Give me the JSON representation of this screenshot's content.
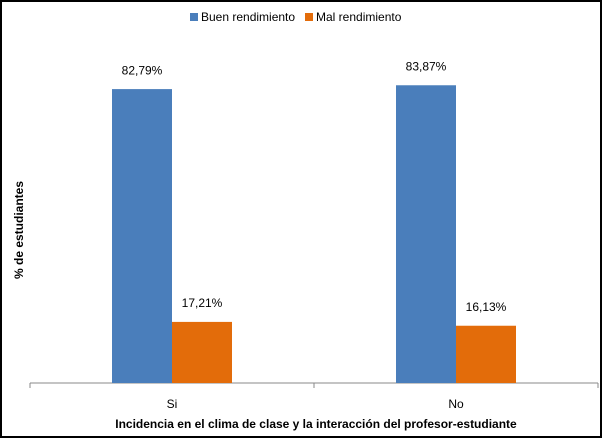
{
  "chart_data": {
    "type": "bar",
    "x_label": "Incidencia en el clima de clase y la interacción del profesor-estudiante",
    "y_label": "% de estudiantes",
    "categories": [
      "Si",
      "No"
    ],
    "series": [
      {
        "name": "Buen rendimiento",
        "color": "#4a7ebb",
        "values": [
          82.79,
          83.87
        ],
        "value_labels": [
          "82,79%",
          "83,87%"
        ]
      },
      {
        "name": "Mal rendimiento",
        "color": "#e36c0a",
        "values": [
          17.21,
          16.13
        ],
        "value_labels": [
          "17,21%",
          "16,13%"
        ]
      }
    ],
    "ylim": [
      0,
      100
    ],
    "legend": "top"
  }
}
